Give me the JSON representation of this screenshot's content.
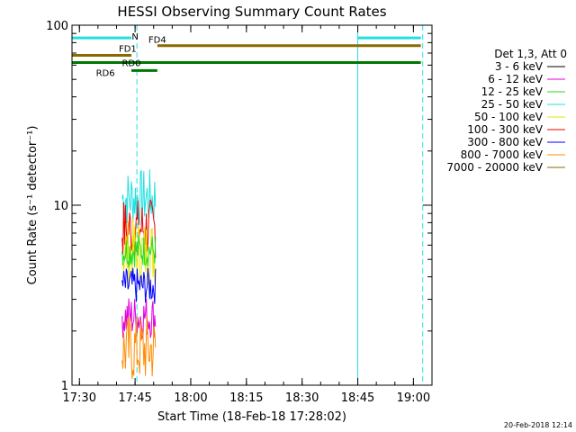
{
  "chart_data": {
    "type": "line",
    "title": "HESSI Observing Summary Count Rates",
    "xlabel": "Start Time (18-Feb-18 17:28:02)",
    "ylabel": "Count Rate (s⁻¹ detector⁻¹)",
    "yscale": "log",
    "ylim": [
      1,
      100
    ],
    "xlim_minutes": [
      0,
      97
    ],
    "x_ticks": [
      {
        "minute": 2,
        "label": "17:30"
      },
      {
        "minute": 17,
        "label": "17:45"
      },
      {
        "minute": 32,
        "label": "18:00"
      },
      {
        "minute": 47,
        "label": "18:15"
      },
      {
        "minute": 62,
        "label": "18:30"
      },
      {
        "minute": 77,
        "label": "18:45"
      },
      {
        "minute": 92,
        "label": "19:00"
      }
    ],
    "y_ticks": [
      {
        "value": 1,
        "label": "1"
      },
      {
        "value": 10,
        "label": "10"
      },
      {
        "value": 100,
        "label": "100"
      }
    ],
    "legend_title": "Det 1,3, Att 0",
    "legend_placement": "right",
    "series": [
      {
        "name": "3 - 6 keV",
        "color": "#000000"
      },
      {
        "name": "6 - 12 keV",
        "color": "#e000e0"
      },
      {
        "name": "12 - 25 keV",
        "color": "#22dd22"
      },
      {
        "name": "25 - 50 keV",
        "color": "#22e0e0"
      },
      {
        "name": "50 - 100 keV",
        "color": "#e6e600"
      },
      {
        "name": "100 - 300 keV",
        "color": "#ee0000"
      },
      {
        "name": "300 - 800 keV",
        "color": "#0000ff"
      },
      {
        "name": "800 - 7000 keV",
        "color": "#ff8c00"
      },
      {
        "name": "7000 - 20000 keV",
        "color": "#8a6a00"
      }
    ],
    "data_interval_minutes": [
      13.5,
      22.5
    ],
    "series_ranges": [
      {
        "name": "25 - 50 keV",
        "low": 7.5,
        "high": 16
      },
      {
        "name": "100 - 300 keV",
        "low": 5,
        "high": 11
      },
      {
        "name": "50 - 100 keV",
        "low": 3.5,
        "high": 8.5
      },
      {
        "name": "12 - 25 keV",
        "low": 4.5,
        "high": 7
      },
      {
        "name": "300 - 800 keV",
        "low": 2.8,
        "high": 4.5
      },
      {
        "name": "6 - 12 keV",
        "low": 1.8,
        "high": 3.2
      },
      {
        "name": "800 - 7000 keV",
        "low": 1,
        "high": 2.5
      }
    ],
    "flag_bars": [
      {
        "label": "N",
        "color": "#22e0e0",
        "level": 85,
        "segments": [
          [
            0,
            16
          ],
          [
            77,
            94
          ]
        ]
      },
      {
        "label": "FD1",
        "color": "#8a6a00",
        "level": 68,
        "segments": [
          [
            0,
            16
          ]
        ]
      },
      {
        "label": "FD4",
        "color": "#8a6a00",
        "level": 77,
        "segments": [
          [
            23,
            94
          ]
        ]
      },
      {
        "label": "RD0",
        "color": "#007700",
        "level": 62,
        "segments": [
          [
            0,
            94
          ]
        ]
      },
      {
        "label": "RD6",
        "color": "#007700",
        "level": 56,
        "segments": [
          [
            16,
            23
          ]
        ]
      }
    ],
    "solid_vlines": [
      [
        0,
        "#22e0e0"
      ],
      [
        77,
        "#22e0e0"
      ]
    ],
    "dashed_vlines": [
      [
        17.5,
        "#22e0e0"
      ],
      [
        94.5,
        "#22e0e0"
      ]
    ]
  },
  "footer": {
    "timestamp": "20-Feb-2018 12:14"
  }
}
